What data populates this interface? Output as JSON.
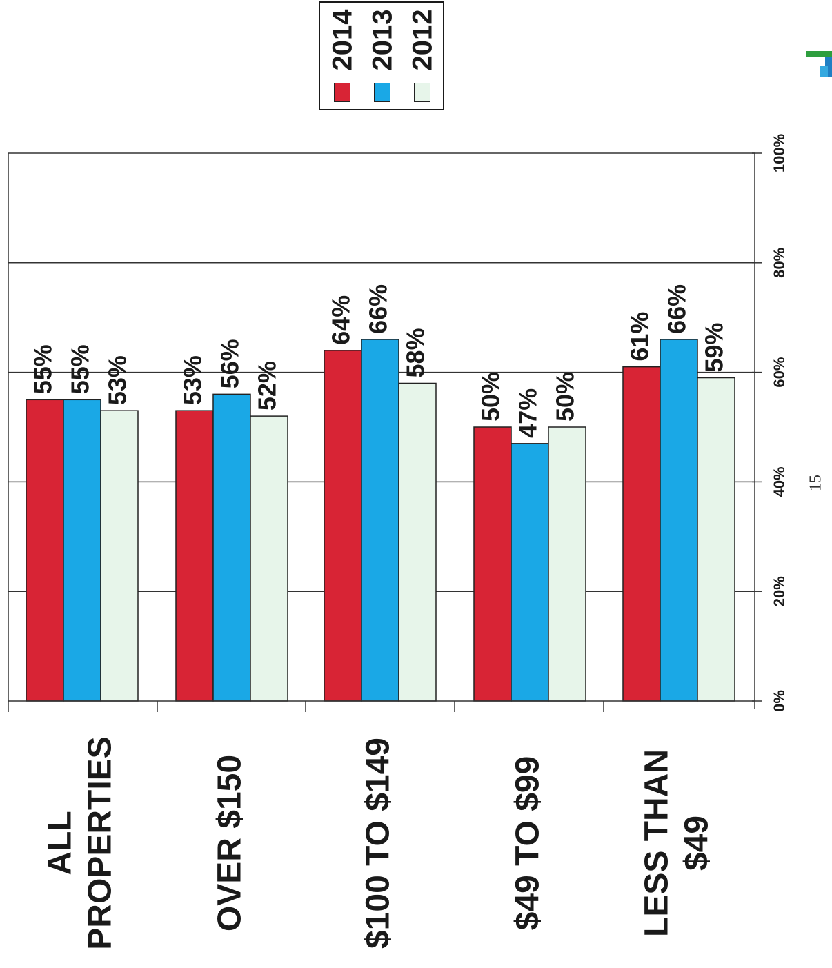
{
  "page": {
    "page_number": "15"
  },
  "colors": {
    "2014": "#d82435",
    "2013": "#1aa8e6",
    "2012": "#e7f5ea",
    "grid": "#333333",
    "text": "#1a1a1a"
  },
  "legend": [
    {
      "label": "2014",
      "color": "#d82435"
    },
    {
      "label": "2013",
      "color": "#1aa8e6"
    },
    {
      "label": "2012",
      "color": "#e7f5ea"
    }
  ],
  "chart_data": {
    "type": "bar",
    "orientation": "horizontal (page rotated 90°)",
    "categories": [
      [
        "ALL",
        "PROPERTIES"
      ],
      [
        "OVER $150"
      ],
      [
        "$100 TO $149"
      ],
      [
        "$49 TO $99"
      ],
      [
        "LESS THAN",
        "$49"
      ]
    ],
    "series": [
      {
        "name": "2014",
        "values": [
          55,
          53,
          64,
          50,
          61
        ],
        "labels": [
          "55%",
          "53%",
          "64%",
          "50%",
          "61%"
        ]
      },
      {
        "name": "2013",
        "values": [
          55,
          56,
          66,
          47,
          66
        ],
        "labels": [
          "55%",
          "56%",
          "66%",
          "47%",
          "66%"
        ]
      },
      {
        "name": "2012",
        "values": [
          53,
          52,
          58,
          50,
          59
        ],
        "labels": [
          "53%",
          "52%",
          "58%",
          "50%",
          "59%"
        ]
      }
    ],
    "value_axis": {
      "min": 0,
      "max": 100,
      "ticks": [
        "0%",
        "20%",
        "40%",
        "60%",
        "80%",
        "100%"
      ]
    },
    "grid": true,
    "legend_position": "top-right"
  }
}
